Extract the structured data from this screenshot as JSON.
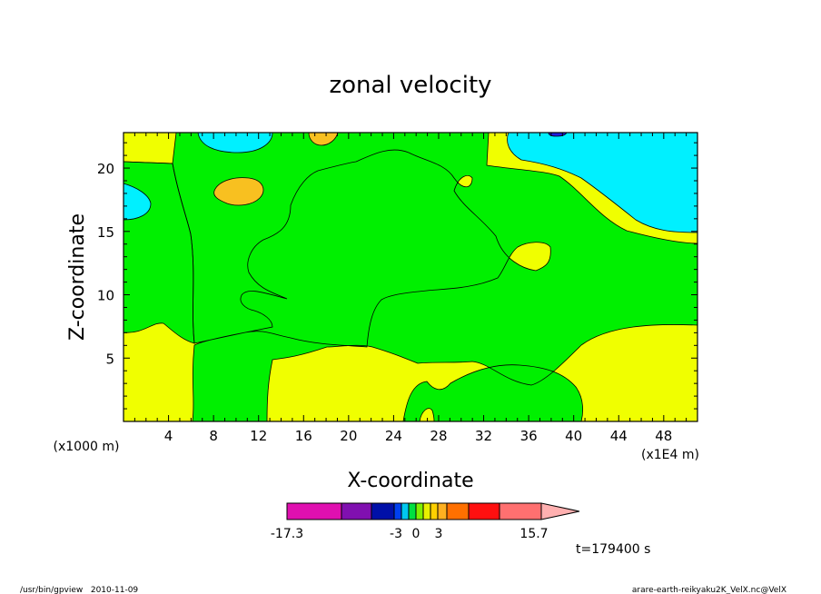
{
  "chart_data": {
    "type": "contour",
    "title": "zonal velocity",
    "xlabel": "X-coordinate",
    "ylabel": "Z-coordinate",
    "x_scale_label": "(x1E4 m)",
    "y_scale_label": "(x1000 m)",
    "xlim": [
      0,
      51
    ],
    "ylim": [
      0,
      22.8
    ],
    "x_ticks": [
      4,
      8,
      12,
      16,
      20,
      24,
      28,
      32,
      36,
      40,
      44,
      48
    ],
    "y_ticks": [
      5,
      10,
      15,
      20
    ],
    "colorbar": {
      "bands": [
        {
          "color": "#e010b0"
        },
        {
          "color": "#8010b0"
        },
        {
          "color": "#0010a8"
        },
        {
          "color": "#0040f0"
        },
        {
          "color": "#00c8f0"
        },
        {
          "color": "#00e040"
        },
        {
          "color": "#80f000"
        },
        {
          "color": "#e8f000"
        },
        {
          "color": "#ffd000"
        },
        {
          "color": "#ffb020"
        },
        {
          "color": "#ff7000"
        },
        {
          "color": "#ff1010"
        },
        {
          "color": "#ff7070"
        },
        {
          "color": "#ffb0b0"
        }
      ],
      "labels": [
        "-17.3",
        "-3",
        "0",
        "3",
        "15.7"
      ]
    },
    "regions": {
      "positive_weak": {
        "color": "#f0ff00"
      },
      "negative_weak": {
        "color": "#00f000"
      },
      "negative_mid": {
        "color": "#00f0ff"
      },
      "positive_mid": {
        "color": "#f8c020"
      },
      "negative_strong": {
        "color": "#2020e0"
      }
    }
  },
  "time_label": "t=179400 s",
  "footer": {
    "left": "/usr/bin/gpview   2010-11-09",
    "right": "arare-earth-reikyaku2K_VelX.nc@VelX"
  }
}
